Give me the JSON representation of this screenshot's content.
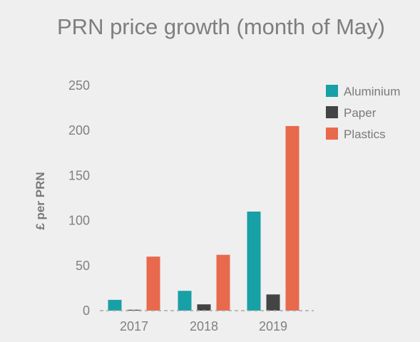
{
  "chart_data": {
    "type": "bar",
    "title": "PRN price growth (month of May)",
    "xlabel": "",
    "ylabel": "£ per PRN",
    "categories": [
      "2017",
      "2018",
      "2019"
    ],
    "series": [
      {
        "name": "Aluminium",
        "color": "#17a0a5",
        "values": [
          12,
          22,
          110
        ]
      },
      {
        "name": "Paper",
        "color": "#444444",
        "values": [
          1,
          7,
          18
        ]
      },
      {
        "name": "Plastics",
        "color": "#e8694c",
        "values": [
          60,
          62,
          205
        ]
      }
    ],
    "ylim": [
      0,
      250
    ],
    "yticks": [
      0,
      50,
      100,
      150,
      200,
      250
    ],
    "grid": false,
    "legend": "top-right"
  }
}
